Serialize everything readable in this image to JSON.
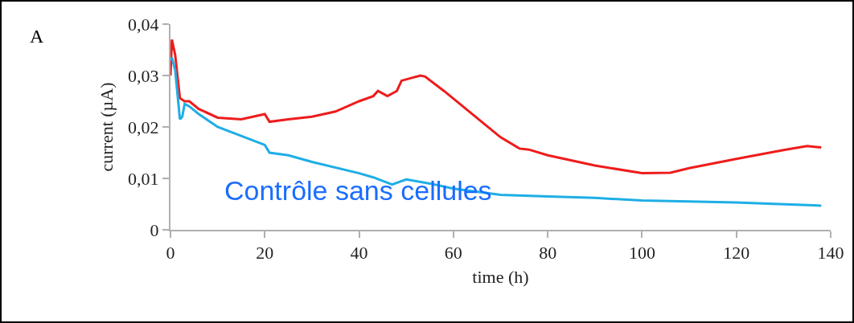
{
  "chart_data": {
    "type": "line",
    "xlabel": "time (h)",
    "ylabel": "current (µA)",
    "xlim": [
      0,
      140
    ],
    "xticks": [
      0,
      20,
      40,
      60,
      80,
      100,
      120,
      140
    ],
    "ylim": [
      0,
      0.04
    ],
    "yticks": [
      {
        "value": 0,
        "label": "0"
      },
      {
        "value": 0.01,
        "label": "0,01"
      },
      {
        "value": 0.02,
        "label": "0,02"
      },
      {
        "value": 0.03,
        "label": "0,03"
      },
      {
        "value": 0.04,
        "label": "0,04"
      }
    ],
    "grid": false,
    "marker": "none",
    "line_style": "solid",
    "annotations": [
      "A",
      "Contrôle sans cellules"
    ],
    "series": [
      {
        "color": "#ee1c1c",
        "x": [
          0,
          0.3,
          1,
          2,
          3,
          4,
          6,
          10,
          15,
          20,
          21,
          25,
          30,
          35,
          40,
          43,
          44,
          46,
          48,
          49,
          53,
          54,
          58,
          62,
          66,
          70,
          74,
          76,
          80,
          90,
          100,
          106,
          110,
          120,
          130,
          135,
          138
        ],
        "values": [
          0.03,
          0.037,
          0.034,
          0.0256,
          0.025,
          0.025,
          0.0235,
          0.0218,
          0.0215,
          0.0225,
          0.021,
          0.0215,
          0.022,
          0.023,
          0.025,
          0.026,
          0.027,
          0.026,
          0.027,
          0.029,
          0.03,
          0.0298,
          0.027,
          0.024,
          0.021,
          0.018,
          0.0158,
          0.0156,
          0.0145,
          0.0125,
          0.011,
          0.0111,
          0.012,
          0.0138,
          0.0155,
          0.0163,
          0.016
        ]
      },
      {
        "color": "#1eaee6",
        "x": [
          0,
          0.3,
          1,
          2,
          2.5,
          3,
          4,
          6,
          10,
          20,
          21,
          25,
          30,
          40,
          43,
          45,
          47,
          50,
          55,
          60,
          70,
          80,
          90,
          100,
          120,
          138
        ],
        "values": [
          0.033,
          0.0335,
          0.031,
          0.0215,
          0.022,
          0.0245,
          0.024,
          0.0225,
          0.02,
          0.0165,
          0.015,
          0.0145,
          0.0132,
          0.011,
          0.0102,
          0.0095,
          0.0088,
          0.0098,
          0.009,
          0.008,
          0.0068,
          0.0065,
          0.0062,
          0.0057,
          0.0053,
          0.0047
        ]
      }
    ]
  }
}
